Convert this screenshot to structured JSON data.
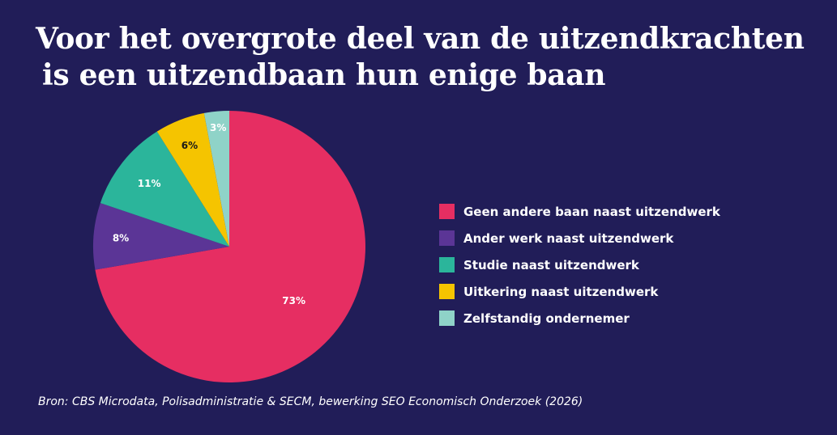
{
  "chart_data": {
    "type": "pie",
    "title_line1": "Voor het overgrote deel van de uitzendkrachten",
    "title_line2": "is een uitzendbaan hun enige baan",
    "slices": [
      {
        "label": "Geen andere baan naast uitzendwerk",
        "value": 73,
        "value_label": "73%",
        "color": "#e62e62",
        "label_color": "#ffffff"
      },
      {
        "label": "Ander werk naast uitzendwerk",
        "value": 8,
        "value_label": "8%",
        "color": "#5b3596",
        "label_color": "#ffffff"
      },
      {
        "label": "Studie naast uitzendwerk",
        "value": 11,
        "value_label": "11%",
        "color": "#2bb59b",
        "label_color": "#ffffff"
      },
      {
        "label": "Uitkering naast uitzendwerk",
        "value": 6,
        "value_label": "6%",
        "color": "#f5c400",
        "label_color": "#1a1a1a"
      },
      {
        "label": "Zelfstandig ondernemer",
        "value": 3,
        "value_label": "3%",
        "color": "#8fd3c8",
        "label_color": "#ffffff"
      }
    ],
    "legend_position": "right",
    "source": "Bron: CBS Microdata, Polisadministratie & SECM, bewerking SEO Economisch Onderzoek (2026)"
  },
  "colors": {
    "background": "#211d58",
    "text": "#ffffff"
  }
}
